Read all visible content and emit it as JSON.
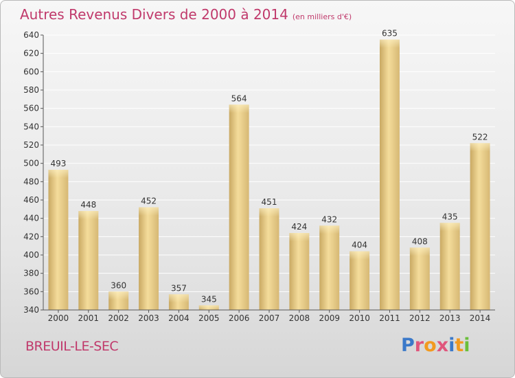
{
  "title": {
    "main": "Autres Revenus Divers de 2000 à 2014",
    "sub": "(en milliers d'€)"
  },
  "place": "BREUIL-LE-SEC",
  "logo": {
    "text": "Proxiti",
    "colors": [
      "#3b79c9",
      "#e0567c",
      "#f29a1f",
      "#e0567c",
      "#3b79c9",
      "#f29a1f",
      "#6abf3a"
    ]
  },
  "colors": {
    "accent": "#c0396b",
    "bar_light": "#f7e3a4",
    "bar_dark": "#d3b46f",
    "axis": "#555555",
    "grid": "#ffffff"
  },
  "chart_data": {
    "type": "bar",
    "title": "Autres Revenus Divers de 2000 à 2014",
    "subtitle": "(en milliers d'€)",
    "categories": [
      "2000",
      "2001",
      "2002",
      "2003",
      "2004",
      "2005",
      "2006",
      "2007",
      "2008",
      "2009",
      "2010",
      "2011",
      "2012",
      "2013",
      "2014"
    ],
    "values": [
      493,
      448,
      360,
      452,
      357,
      345,
      564,
      451,
      424,
      432,
      404,
      635,
      408,
      435,
      522
    ],
    "ylim": [
      340,
      640
    ],
    "yticks": [
      340,
      360,
      380,
      400,
      420,
      440,
      460,
      480,
      500,
      520,
      540,
      560,
      580,
      600,
      620,
      640
    ],
    "grid": true,
    "xlabel": "",
    "ylabel": ""
  }
}
